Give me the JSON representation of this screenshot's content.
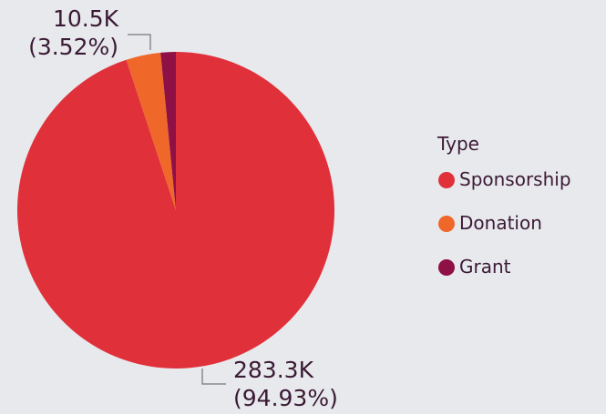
{
  "chart_data": {
    "type": "pie",
    "slices": [
      {
        "name": "Sponsorship",
        "value": 283.3,
        "percent": 94.93,
        "value_label": "283.3K",
        "percent_label": "(94.93%)",
        "color": "#e0313b"
      },
      {
        "name": "Donation",
        "value": 10.5,
        "percent": 3.52,
        "value_label": "10.5K",
        "percent_label": "(3.52%)",
        "color": "#f0672a"
      },
      {
        "name": "Grant",
        "value": 4.6,
        "percent": 1.55,
        "value_label": "",
        "percent_label": "",
        "color": "#8e1045"
      }
    ],
    "legend": {
      "title": "Type",
      "position": "right"
    }
  },
  "colors": {
    "background": "#e7e9ec",
    "text": "#3b1a35",
    "leader_line": "#8a8a8a"
  }
}
